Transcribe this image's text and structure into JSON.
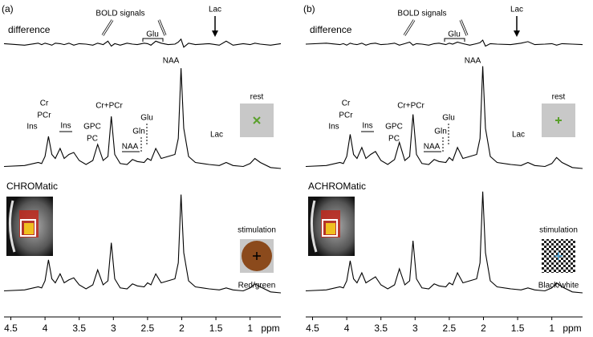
{
  "chart_data": [
    {
      "type": "line",
      "panel_label": "(a)",
      "x_label": "ppm",
      "x": [
        4.6,
        4.3,
        4.1,
        4.05,
        4.0,
        3.95,
        3.9,
        3.85,
        3.78,
        3.72,
        3.65,
        3.58,
        3.5,
        3.4,
        3.3,
        3.23,
        3.15,
        3.08,
        3.03,
        2.98,
        2.9,
        2.8,
        2.72,
        2.65,
        2.55,
        2.5,
        2.45,
        2.38,
        2.3,
        2.2,
        2.1,
        2.05,
        2.01,
        1.97,
        1.9,
        1.8,
        1.6,
        1.45,
        1.35,
        1.25,
        1.1,
        1.0,
        0.93,
        0.85,
        0.7,
        0.55
      ],
      "xlim": [
        4.6,
        0.55
      ],
      "xticks": [
        4.5,
        4,
        3.5,
        3,
        2.5,
        2,
        1.5,
        1
      ],
      "series": [
        {
          "name": "difference",
          "color": "#000000",
          "values": [
            0.5,
            -1,
            1,
            -0.5,
            1,
            0,
            -1,
            1,
            0.5,
            -0.5,
            1,
            -1,
            0.5,
            0,
            -1,
            1,
            -0.5,
            3,
            -2,
            0.5,
            -1,
            1,
            0,
            -0.5,
            1,
            0.5,
            -1,
            3,
            1,
            -0.5,
            0,
            2,
            5,
            -3,
            1,
            -0.5,
            0.5,
            -1,
            3,
            -1,
            0.5,
            -0.5,
            1,
            0,
            -1,
            0.5
          ]
        },
        {
          "color": "#000000",
          "values": [
            2,
            3,
            6,
            5,
            12,
            32,
            14,
            10,
            20,
            10,
            14,
            16,
            8,
            4,
            8,
            24,
            8,
            12,
            52,
            14,
            5,
            4,
            9,
            7,
            6,
            10,
            8,
            20,
            10,
            12,
            14,
            30,
            100,
            40,
            12,
            6,
            4,
            3,
            6,
            3,
            2,
            5,
            10,
            6,
            1,
            0
          ]
        },
        {
          "name": "CHROMatic",
          "color": "#000000",
          "values": [
            2,
            3,
            6,
            5,
            12,
            33,
            14,
            10,
            19,
            10,
            13,
            15,
            8,
            4,
            8,
            23,
            8,
            12,
            50,
            14,
            5,
            4,
            9,
            7,
            6,
            10,
            8,
            19,
            10,
            12,
            14,
            30,
            98,
            40,
            12,
            6,
            4,
            3,
            5,
            3,
            2,
            5,
            9,
            6,
            1,
            0
          ]
        }
      ],
      "annotations": [
        "BOLD signals",
        "Glu",
        "Lac",
        "Cr",
        "PCr",
        "Ins",
        "Ins",
        "GPC",
        "PC",
        "Cr+PCr",
        "NAA",
        "Gln",
        "Glu",
        "NAA",
        "Lac",
        "rest",
        "stimulation",
        "Red/green"
      ]
    },
    {
      "type": "line",
      "panel_label": "(b)",
      "x_label": "ppm",
      "x": [
        4.6,
        4.3,
        4.1,
        4.05,
        4.0,
        3.95,
        3.9,
        3.85,
        3.78,
        3.72,
        3.65,
        3.58,
        3.5,
        3.4,
        3.3,
        3.23,
        3.15,
        3.08,
        3.03,
        2.98,
        2.9,
        2.8,
        2.72,
        2.65,
        2.55,
        2.5,
        2.45,
        2.38,
        2.3,
        2.2,
        2.1,
        2.05,
        2.01,
        1.97,
        1.9,
        1.8,
        1.6,
        1.45,
        1.35,
        1.25,
        1.1,
        1.0,
        0.93,
        0.85,
        0.7,
        0.55
      ],
      "xlim": [
        4.6,
        0.55
      ],
      "xticks": [
        4.5,
        4,
        3.5,
        3,
        2.5,
        2,
        1.5,
        1
      ],
      "series": [
        {
          "name": "difference",
          "color": "#000000",
          "values": [
            0,
            1,
            -0.5,
            0.5,
            -1,
            1,
            0,
            -0.5,
            1,
            -1,
            0.5,
            1,
            -0.5,
            0,
            1,
            -1,
            0.5,
            2,
            -1,
            0.5,
            0,
            -1,
            0.5,
            1,
            -0.5,
            1,
            0,
            2,
            0.5,
            -1,
            0.5,
            1.5,
            4,
            -2,
            0.5,
            0,
            -0.5,
            1,
            2.5,
            -0.5,
            0,
            0.5,
            -1,
            0.5,
            0,
            -0.5
          ]
        },
        {
          "color": "#000000",
          "values": [
            2,
            3,
            6,
            5,
            12,
            34,
            14,
            10,
            21,
            10,
            14,
            17,
            8,
            4,
            9,
            26,
            8,
            12,
            54,
            14,
            5,
            4,
            9,
            7,
            6,
            11,
            8,
            21,
            10,
            12,
            14,
            30,
            102,
            40,
            12,
            6,
            4,
            3,
            6,
            3,
            2,
            5,
            11,
            6,
            1,
            0
          ]
        },
        {
          "name": "ACHROMatic",
          "color": "#000000",
          "values": [
            2,
            3,
            6,
            5,
            12,
            32,
            14,
            10,
            20,
            10,
            13,
            16,
            8,
            4,
            8,
            24,
            8,
            12,
            52,
            14,
            5,
            4,
            9,
            7,
            6,
            10,
            8,
            20,
            10,
            12,
            14,
            30,
            101,
            40,
            12,
            6,
            4,
            3,
            5,
            3,
            2,
            5,
            10,
            6,
            1,
            0
          ]
        }
      ],
      "annotations": [
        "BOLD signals",
        "Glu",
        "Lac",
        "Cr",
        "PCr",
        "Ins",
        "Ins",
        "GPC",
        "PC",
        "Cr+PCr",
        "NAA",
        "Gln",
        "Glu",
        "NAA",
        "Lac",
        "rest",
        "stimulation",
        "Black/white"
      ]
    }
  ]
}
